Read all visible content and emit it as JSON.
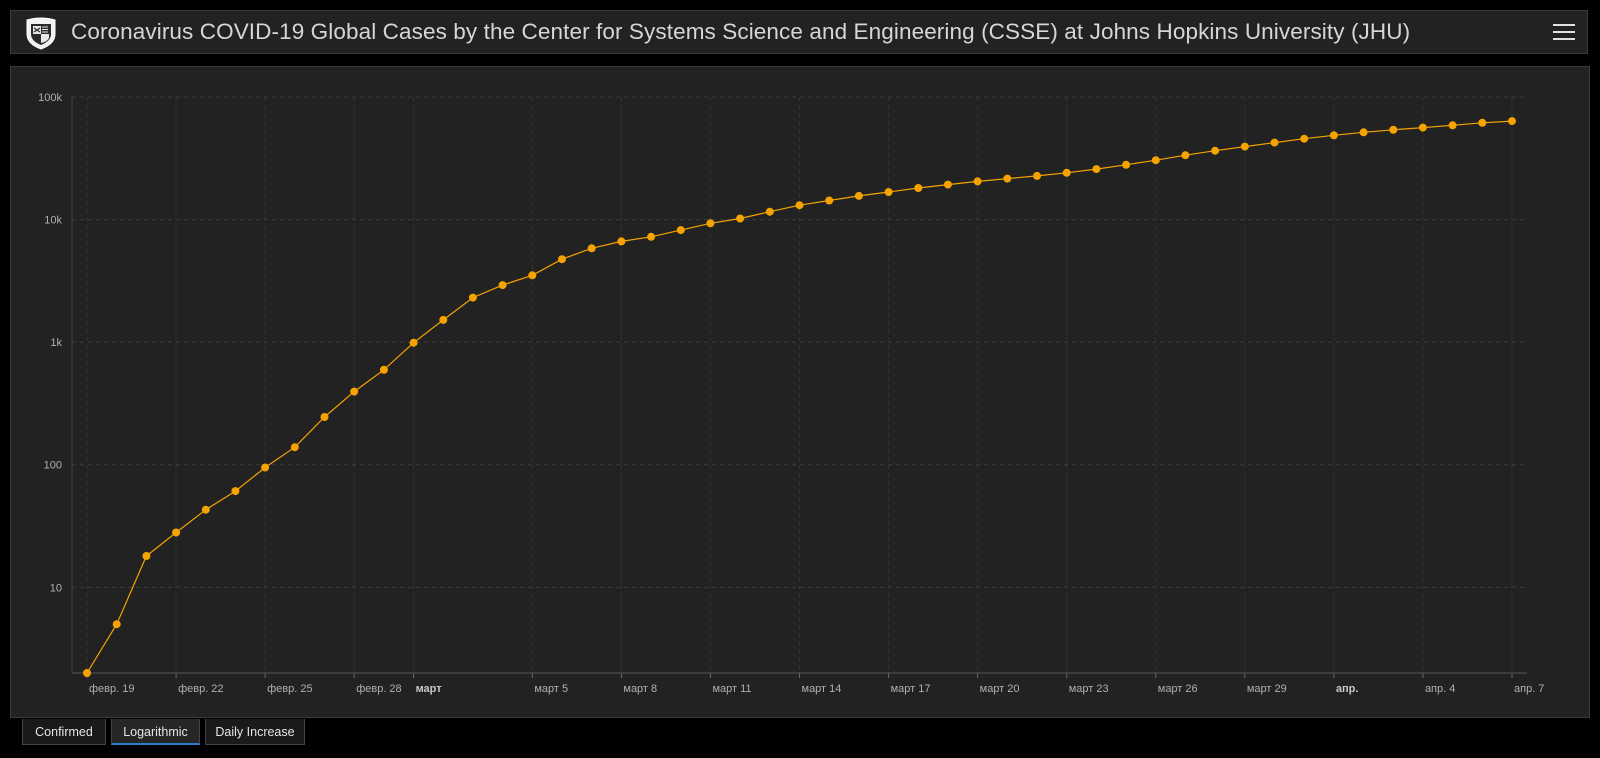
{
  "header": {
    "title": "Coronavirus COVID-19 Global Cases by the Center for Systems Science and Engineering (CSSE) at Johns Hopkins University (JHU)",
    "logo_icon": "jhu-shield-icon",
    "menu_icon": "hamburger-menu-icon"
  },
  "tabs": [
    {
      "label": "Confirmed",
      "active": false
    },
    {
      "label": "Logarithmic",
      "active": true
    },
    {
      "label": "Daily Increase",
      "active": false
    }
  ],
  "colors": {
    "series": "#f5a300",
    "tab_active_underline": "#2e7bd6",
    "panel_bg": "#222222"
  },
  "chart_data": {
    "type": "line",
    "yscale": "log",
    "ylim": [
      2,
      100000
    ],
    "yticks": [
      {
        "value": 10,
        "label": "10"
      },
      {
        "value": 100,
        "label": "100"
      },
      {
        "value": 1000,
        "label": "1k"
      },
      {
        "value": 10000,
        "label": "10k"
      },
      {
        "value": 100000,
        "label": "100k"
      }
    ],
    "xlim": [
      "2020-02-19",
      "2020-04-07"
    ],
    "xticks": [
      {
        "date": "2020-02-19",
        "label": "февр. 19",
        "bold": false
      },
      {
        "date": "2020-02-22",
        "label": "февр. 22",
        "bold": false
      },
      {
        "date": "2020-02-25",
        "label": "февр. 25",
        "bold": false
      },
      {
        "date": "2020-02-28",
        "label": "февр. 28",
        "bold": false
      },
      {
        "date": "2020-03-01",
        "label": "март",
        "bold": true
      },
      {
        "date": "2020-03-05",
        "label": "март 5",
        "bold": false
      },
      {
        "date": "2020-03-08",
        "label": "март 8",
        "bold": false
      },
      {
        "date": "2020-03-11",
        "label": "март 11",
        "bold": false
      },
      {
        "date": "2020-03-14",
        "label": "март 14",
        "bold": false
      },
      {
        "date": "2020-03-17",
        "label": "март 17",
        "bold": false
      },
      {
        "date": "2020-03-20",
        "label": "март 20",
        "bold": false
      },
      {
        "date": "2020-03-23",
        "label": "март 23",
        "bold": false
      },
      {
        "date": "2020-03-26",
        "label": "март 26",
        "bold": false
      },
      {
        "date": "2020-03-29",
        "label": "март 29",
        "bold": false
      },
      {
        "date": "2020-04-01",
        "label": "апр.",
        "bold": true
      },
      {
        "date": "2020-04-04",
        "label": "апр. 4",
        "bold": false
      },
      {
        "date": "2020-04-07",
        "label": "апр. 7",
        "bold": false
      }
    ],
    "grid": true,
    "series": [
      {
        "x": [
          "2020-02-19",
          "2020-02-20",
          "2020-02-21",
          "2020-02-22",
          "2020-02-23",
          "2020-02-24",
          "2020-02-25",
          "2020-02-26",
          "2020-02-27",
          "2020-02-28",
          "2020-02-29",
          "2020-03-01",
          "2020-03-02",
          "2020-03-03",
          "2020-03-04",
          "2020-03-05",
          "2020-03-06",
          "2020-03-07",
          "2020-03-08",
          "2020-03-09",
          "2020-03-10",
          "2020-03-11",
          "2020-03-12",
          "2020-03-13",
          "2020-03-14",
          "2020-03-15",
          "2020-03-16",
          "2020-03-17",
          "2020-03-18",
          "2020-03-19",
          "2020-03-20",
          "2020-03-21",
          "2020-03-22",
          "2020-03-23",
          "2020-03-24",
          "2020-03-25",
          "2020-03-26",
          "2020-03-27",
          "2020-03-28",
          "2020-03-29",
          "2020-03-30",
          "2020-03-31",
          "2020-04-01",
          "2020-04-02",
          "2020-04-03",
          "2020-04-04",
          "2020-04-05",
          "2020-04-06",
          "2020-04-07"
        ],
        "values": [
          2,
          5,
          18,
          28,
          43,
          61,
          95,
          139,
          245,
          395,
          595,
          990,
          1520,
          2310,
          2920,
          3510,
          4750,
          5830,
          6640,
          7240,
          8200,
          9320,
          10200,
          11600,
          13100,
          14300,
          15600,
          16800,
          18100,
          19300,
          20500,
          21600,
          22700,
          24100,
          25800,
          28000,
          30500,
          33500,
          36500,
          39400,
          42500,
          45700,
          48700,
          51500,
          54000,
          56300,
          58800,
          61600,
          63600
        ]
      }
    ]
  }
}
